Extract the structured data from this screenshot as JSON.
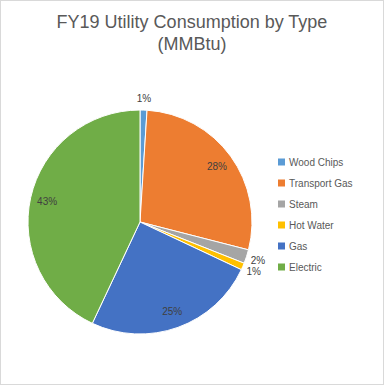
{
  "chart_data": {
    "type": "pie",
    "title": "FY19 Utility Consumption by Type (MMBtu)",
    "categories": [
      "Wood Chips",
      "Transport Gas",
      "Steam",
      "Hot Water",
      "Gas",
      "Electric"
    ],
    "values": [
      1,
      28,
      2,
      1,
      25,
      43
    ],
    "value_labels": [
      "1%",
      "28%",
      "2%",
      "1%",
      "25%",
      "43%"
    ],
    "colors": [
      "#5b9bd5",
      "#ed7d31",
      "#a5a5a5",
      "#ffc000",
      "#4472c4",
      "#70ad47"
    ],
    "data_labels": true,
    "legend": "right"
  }
}
